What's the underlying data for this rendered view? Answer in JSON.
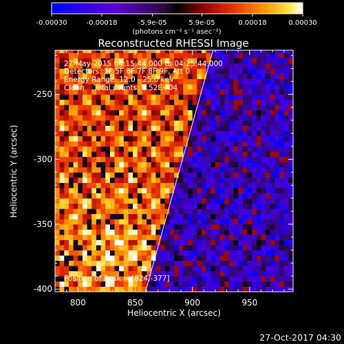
{
  "chart_data": {
    "type": "heatmap",
    "title": "Reconstructed RHESSI Image",
    "xlabel": "Heliocentric X (arcsec)",
    "ylabel": "Heliocentric Y (arcsec)",
    "xlim": [
      780,
      988
    ],
    "ylim": [
      -402,
      -216
    ],
    "xticks": [
      800,
      850,
      900,
      950
    ],
    "yticks": [
      -250,
      -300,
      -350,
      -400
    ],
    "colorbar": {
      "range": [
        -0.0003,
        0.0003
      ],
      "tick_values": [
        -0.0003,
        -0.00018,
        -5.9e-05,
        5.9e-05,
        0.00018,
        0.0003
      ],
      "tick_labels": [
        "-0.00030",
        "-0.00018",
        "-5.9e-05",
        "5.9e-05",
        "0.00018",
        "0.00030"
      ],
      "unit_label": "(photons cm⁻² s⁻¹ asec⁻²)"
    },
    "annotations": [
      "27-May-2015 04:15:44.000 to 04:25:44.000",
      "Detectors: 3F 5F 6F 7F 8F 9F, Att 0",
      "Energy Range: 12.0 - 25.0 keV",
      "Clean    Total counts: 1.52E+04"
    ],
    "peak_label": "Position of Peak = [824,-377]",
    "peak": [
      824,
      -377
    ],
    "limb_line": [
      [
        859,
        -402
      ],
      [
        918,
        -216
      ]
    ],
    "grid": false
  },
  "footer": {
    "timestamp": "27-Oct-2017 04:30"
  },
  "colors": {
    "background": "#000000",
    "axes": "#ffffff"
  }
}
